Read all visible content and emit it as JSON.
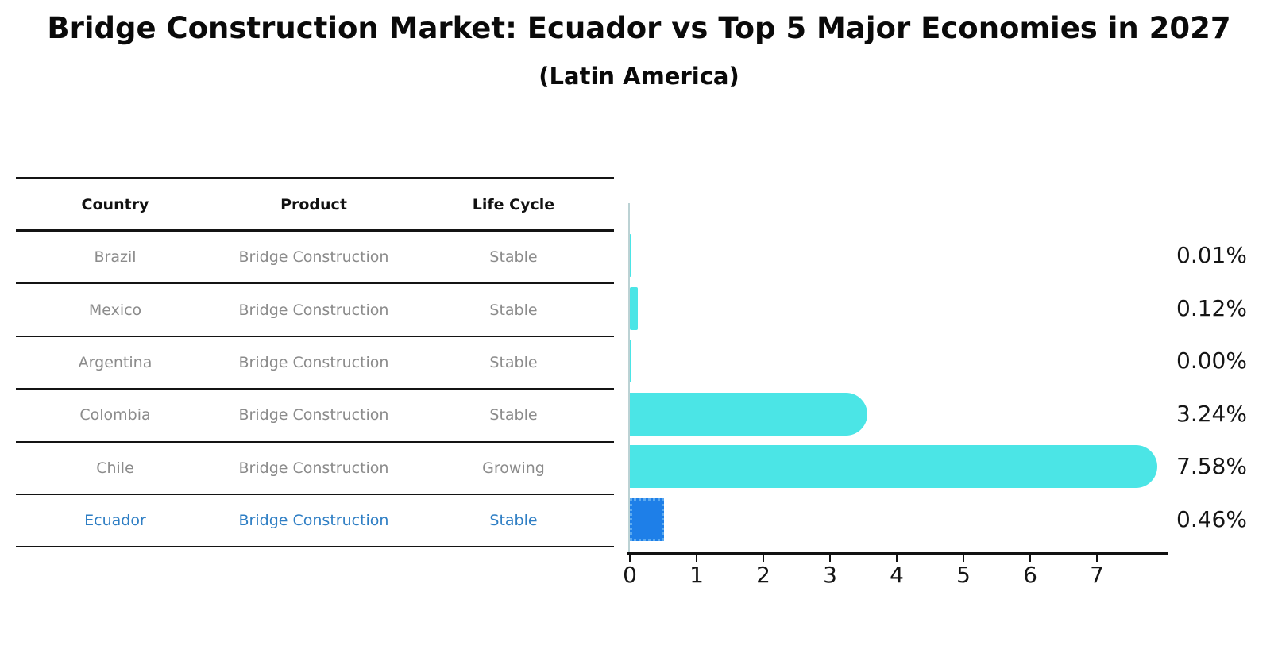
{
  "title": "Bridge Construction Market: Ecuador vs Top 5 Major Economies in 2027",
  "subtitle": "(Latin America)",
  "table": {
    "headers": [
      "Country",
      "Product",
      "Life Cycle"
    ],
    "rows": [
      {
        "country": "Brazil",
        "product": "Bridge Construction",
        "life_cycle": "Stable"
      },
      {
        "country": "Mexico",
        "product": "Bridge Construction",
        "life_cycle": "Stable"
      },
      {
        "country": "Argentina",
        "product": "Bridge Construction",
        "life_cycle": "Stable"
      },
      {
        "country": "Colombia",
        "product": "Bridge Construction",
        "life_cycle": "Stable"
      },
      {
        "country": "Chile",
        "product": "Bridge Construction",
        "life_cycle": "Growing"
      },
      {
        "country": "Ecuador",
        "product": "Bridge Construction",
        "life_cycle": "Stable"
      }
    ],
    "highlighted_row": "Ecuador"
  },
  "chart_data": {
    "type": "bar",
    "orientation": "horizontal",
    "title": "Bridge Construction Market: Ecuador vs Top 5 Major Economies in 2027",
    "subtitle": "(Latin America)",
    "categories": [
      "Brazil",
      "Mexico",
      "Argentina",
      "Colombia",
      "Chile",
      "Ecuador"
    ],
    "values": [
      0.01,
      0.12,
      0.0,
      3.24,
      7.58,
      0.46
    ],
    "value_labels": [
      "0.01%",
      "0.12%",
      "0.00%",
      "3.24%",
      "7.58%",
      "0.46%"
    ],
    "x_ticks": [
      "0",
      "1",
      "2",
      "3",
      "4",
      "5",
      "6",
      "7"
    ],
    "xlim": [
      0,
      8
    ],
    "unit": "percent",
    "grid": false,
    "legend": "none",
    "bar_color": "#4be5e6",
    "highlight_index": 5,
    "highlight_bar_color": "#1e7fe8",
    "highlight_text_color": "#2e7ec4"
  },
  "colors": {
    "background": "#ffffff",
    "table_line": "#141414",
    "table_text": "#8b8b8b",
    "header_text": "#111111",
    "axis": "#111111",
    "value_label_text": "#151515"
  }
}
